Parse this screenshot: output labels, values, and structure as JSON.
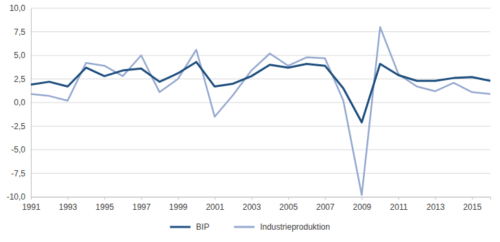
{
  "chart_data": {
    "type": "line",
    "x": [
      1991,
      1992,
      1993,
      1994,
      1995,
      1996,
      1997,
      1998,
      1999,
      2000,
      2001,
      2002,
      2003,
      2004,
      2005,
      2006,
      2007,
      2008,
      2009,
      2010,
      2011,
      2012,
      2013,
      2014,
      2015,
      2016
    ],
    "series": [
      {
        "name": "BIP",
        "color": "#1d4e7e",
        "values": [
          1.9,
          2.2,
          1.7,
          3.7,
          2.8,
          3.4,
          3.6,
          2.2,
          3.1,
          4.3,
          1.7,
          2.0,
          2.8,
          4.0,
          3.7,
          4.1,
          3.9,
          1.5,
          -2.1,
          4.1,
          2.9,
          2.3,
          2.3,
          2.6,
          2.7,
          2.3
        ]
      },
      {
        "name": "Industrieproduktion",
        "color": "#94a9cf",
        "values": [
          0.9,
          0.7,
          0.2,
          4.2,
          3.9,
          2.8,
          5.0,
          1.1,
          2.5,
          5.6,
          -1.5,
          0.8,
          3.4,
          5.2,
          3.9,
          4.8,
          4.7,
          0.2,
          -9.8,
          8.0,
          3.0,
          1.7,
          1.2,
          2.1,
          1.1,
          0.9
        ]
      }
    ],
    "xlim": [
      1991,
      2016
    ],
    "xticks": [
      1991,
      1993,
      1995,
      1997,
      1999,
      2001,
      2003,
      2005,
      2007,
      2009,
      2011,
      2013,
      2015
    ],
    "ylim": [
      -10,
      10
    ],
    "yticks": [
      {
        "value": -10,
        "label": "-10,0"
      },
      {
        "value": -7.5,
        "label": "-7,5"
      },
      {
        "value": -5,
        "label": "-5,0"
      },
      {
        "value": -2.5,
        "label": "-2,5"
      },
      {
        "value": 0,
        "label": "0,0"
      },
      {
        "value": 2.5,
        "label": "2,5"
      },
      {
        "value": 5,
        "label": "5,0"
      },
      {
        "value": 7.5,
        "label": "7,5"
      },
      {
        "value": 10,
        "label": "10,0"
      }
    ],
    "grid": true,
    "legend": "bottom"
  }
}
